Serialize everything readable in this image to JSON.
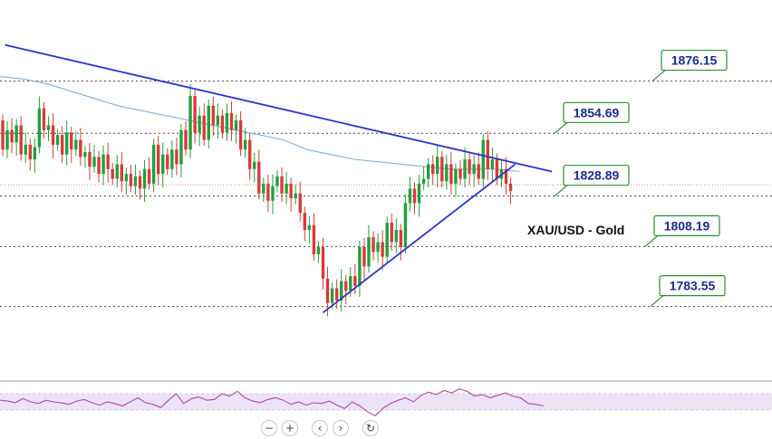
{
  "chart_data": {
    "type": "candlestick",
    "symbol_label": "XAU/USD - Gold",
    "levels": [
      1876.15,
      1854.69,
      1828.89,
      1808.19,
      1783.55
    ],
    "level_labels": [
      "1876.15",
      "1854.69",
      "1828.89",
      "1808.19",
      "1783.55"
    ],
    "current_price": 1833.5,
    "ylim": [
      1757,
      1905
    ],
    "grid": false,
    "candles": [
      [
        1860,
        1848
      ],
      [
        1848,
        1856
      ],
      [
        1856,
        1851
      ],
      [
        1851,
        1858
      ],
      [
        1858,
        1846
      ],
      [
        1846,
        1850
      ],
      [
        1850,
        1844
      ],
      [
        1844,
        1849
      ],
      [
        1849,
        1865
      ],
      [
        1865,
        1856
      ],
      [
        1856,
        1858
      ],
      [
        1858,
        1850
      ],
      [
        1850,
        1854
      ],
      [
        1854,
        1846
      ],
      [
        1846,
        1855
      ],
      [
        1855,
        1848
      ],
      [
        1848,
        1852
      ],
      [
        1852,
        1845
      ],
      [
        1845,
        1847
      ],
      [
        1847,
        1841
      ],
      [
        1841,
        1845
      ],
      [
        1845,
        1838
      ],
      [
        1838,
        1846
      ],
      [
        1846,
        1840
      ],
      [
        1840,
        1836
      ],
      [
        1836,
        1842
      ],
      [
        1842,
        1835
      ],
      [
        1835,
        1838
      ],
      [
        1838,
        1833
      ],
      [
        1833,
        1837
      ],
      [
        1837,
        1832
      ],
      [
        1832,
        1840
      ],
      [
        1840,
        1834
      ],
      [
        1834,
        1850
      ],
      [
        1850,
        1838
      ],
      [
        1838,
        1846
      ],
      [
        1846,
        1840
      ],
      [
        1840,
        1848
      ],
      [
        1848,
        1842
      ],
      [
        1842,
        1856
      ],
      [
        1856,
        1848
      ],
      [
        1848,
        1870
      ],
      [
        1870,
        1855
      ],
      [
        1855,
        1862
      ],
      [
        1862,
        1852
      ],
      [
        1852,
        1866
      ],
      [
        1866,
        1858
      ],
      [
        1858,
        1862
      ],
      [
        1862,
        1855
      ],
      [
        1855,
        1863
      ],
      [
        1863,
        1856
      ],
      [
        1856,
        1860
      ],
      [
        1860,
        1848
      ],
      [
        1848,
        1852
      ],
      [
        1852,
        1840
      ],
      [
        1840,
        1843
      ],
      [
        1843,
        1830
      ],
      [
        1830,
        1834
      ],
      [
        1834,
        1827
      ],
      [
        1827,
        1833
      ],
      [
        1833,
        1837
      ],
      [
        1837,
        1830
      ],
      [
        1830,
        1834
      ],
      [
        1834,
        1828
      ],
      [
        1828,
        1830
      ],
      [
        1830,
        1822
      ],
      [
        1822,
        1815
      ],
      [
        1815,
        1817
      ],
      [
        1817,
        1805
      ],
      [
        1805,
        1808
      ],
      [
        1808,
        1795
      ],
      [
        1795,
        1785
      ],
      [
        1785,
        1791
      ],
      [
        1791,
        1786
      ],
      [
        1786,
        1794
      ],
      [
        1794,
        1790
      ],
      [
        1790,
        1796
      ],
      [
        1796,
        1792
      ],
      [
        1792,
        1808
      ],
      [
        1808,
        1800
      ],
      [
        1800,
        1812
      ],
      [
        1812,
        1806
      ],
      [
        1806,
        1810
      ],
      [
        1810,
        1804
      ],
      [
        1804,
        1818
      ],
      [
        1818,
        1810
      ],
      [
        1810,
        1815
      ],
      [
        1815,
        1808
      ],
      [
        1808,
        1826
      ],
      [
        1826,
        1832
      ],
      [
        1832,
        1826
      ],
      [
        1826,
        1834
      ],
      [
        1834,
        1836
      ],
      [
        1836,
        1842
      ],
      [
        1842,
        1838
      ],
      [
        1838,
        1845
      ],
      [
        1845,
        1835
      ],
      [
        1835,
        1842
      ],
      [
        1842,
        1834
      ],
      [
        1834,
        1840
      ],
      [
        1840,
        1836
      ],
      [
        1836,
        1844
      ],
      [
        1844,
        1838
      ],
      [
        1838,
        1842
      ],
      [
        1842,
        1836
      ],
      [
        1836,
        1852
      ],
      [
        1852,
        1840
      ],
      [
        1840,
        1844
      ],
      [
        1844,
        1836
      ],
      [
        1836,
        1840
      ],
      [
        1840,
        1834
      ],
      [
        1834,
        1831
      ]
    ],
    "ma_series": [
      1878,
      1877,
      1875,
      1872,
      1869,
      1866,
      1864,
      1862,
      1860,
      1858,
      1856,
      1854,
      1852,
      1848,
      1846,
      1844,
      1843,
      1842,
      1841,
      1840,
      1840,
      1840,
      1839
    ],
    "trendlines": [
      {
        "name": "resistance",
        "from": [
          0.5,
          1891
        ],
        "to": [
          120,
          1839
        ]
      },
      {
        "name": "support",
        "from": [
          70,
          1781
        ],
        "to": [
          112,
          1842
        ]
      }
    ],
    "rsi": [
      52,
      51,
      49,
      54,
      50,
      48,
      52,
      50,
      49,
      47,
      51,
      53,
      49,
      46,
      50,
      48,
      45,
      50,
      55,
      49,
      47,
      43,
      52,
      60,
      48,
      54,
      56,
      52,
      53,
      60,
      57,
      63,
      55,
      51,
      49,
      53,
      55,
      52,
      47,
      50,
      46,
      49,
      48,
      51,
      46,
      42,
      50,
      45,
      38,
      33,
      42,
      48,
      52,
      55,
      50,
      58,
      62,
      59,
      64,
      61,
      66,
      63,
      57,
      59,
      55,
      58,
      61,
      57,
      55,
      48,
      47,
      45
    ],
    "controls": [
      "−",
      "+",
      "‹",
      "›",
      "↻"
    ]
  },
  "colors": {
    "up": "#22a03c",
    "down": "#d93a3a",
    "trendline": "#2a35c9",
    "ma": "#7fb0d6",
    "rsi_line": "#b04aa5",
    "rsi_band": "#ece3f6",
    "level_box": "#2e8b3a",
    "level_text": "#1a2e8c"
  }
}
